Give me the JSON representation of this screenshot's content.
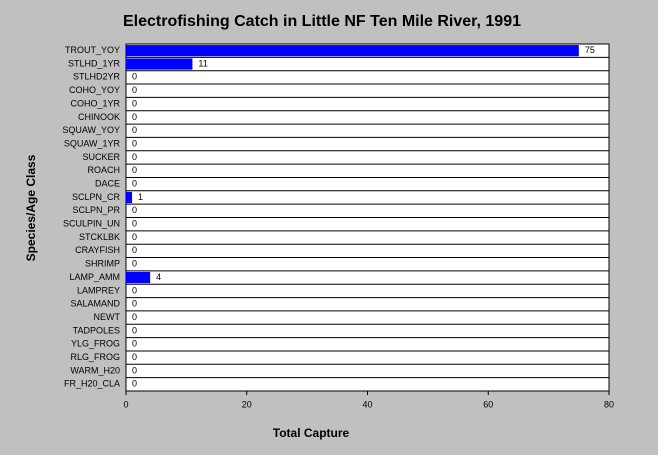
{
  "chart_data": {
    "type": "hbar",
    "title": "Electrofishing Catch in Little NF Ten Mile River, 1991",
    "x_label": "Total Capture",
    "y_label": "Species/Age Class",
    "categories": [
      "TROUT_YOY",
      "STLHD_1YR",
      "STLHD2YR",
      "COHO_YOY",
      "COHO_1YR",
      "CHINOOK",
      "SQUAW_YOY",
      "SQUAW_1YR",
      "SUCKER",
      "ROACH",
      "DACE",
      "SCLPN_CR",
      "SCLPN_PR",
      "SCULPIN_UN",
      "STCKLBK",
      "CRAYFISH",
      "SHRIMP",
      "LAMP_AMM",
      "LAMPREY",
      "SALAMAND",
      "NEWT",
      "TADPOLES",
      "YLG_FROG",
      "RLG_FROG",
      "WARM_H20",
      "FR_H20_CLA"
    ],
    "values": [
      75,
      11,
      0,
      0,
      0,
      0,
      0,
      0,
      0,
      0,
      0,
      1,
      0,
      0,
      0,
      0,
      0,
      4,
      0,
      0,
      0,
      0,
      0,
      0,
      0,
      0
    ],
    "color": "#0000ff",
    "xlim": [
      0,
      80
    ],
    "xticks": [
      0,
      20,
      40,
      60,
      80
    ]
  }
}
